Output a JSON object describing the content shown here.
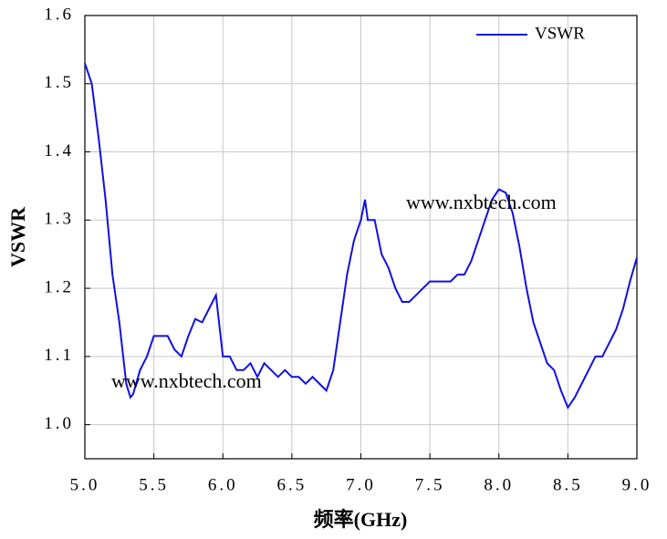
{
  "chart_data": {
    "type": "line",
    "xlabel": "频率(GHz)",
    "ylabel": "VSWR",
    "x": [
      5.0,
      5.05,
      5.1,
      5.15,
      5.2,
      5.25,
      5.3,
      5.33,
      5.35,
      5.4,
      5.45,
      5.5,
      5.55,
      5.6,
      5.65,
      5.7,
      5.75,
      5.8,
      5.85,
      5.9,
      5.95,
      6.0,
      6.05,
      6.1,
      6.15,
      6.2,
      6.25,
      6.3,
      6.35,
      6.4,
      6.45,
      6.5,
      6.55,
      6.6,
      6.65,
      6.7,
      6.75,
      6.8,
      6.85,
      6.9,
      6.95,
      7.0,
      7.03,
      7.05,
      7.1,
      7.15,
      7.2,
      7.25,
      7.3,
      7.35,
      7.4,
      7.45,
      7.5,
      7.55,
      7.6,
      7.65,
      7.7,
      7.75,
      7.8,
      7.85,
      7.9,
      7.95,
      8.0,
      8.05,
      8.1,
      8.15,
      8.2,
      8.25,
      8.3,
      8.35,
      8.4,
      8.45,
      8.5,
      8.55,
      8.6,
      8.65,
      8.7,
      8.75,
      8.8,
      8.85,
      8.9,
      8.95,
      9.0
    ],
    "series": [
      {
        "name": "VSWR",
        "color": "#1010e0",
        "values": [
          1.53,
          1.5,
          1.42,
          1.33,
          1.22,
          1.15,
          1.06,
          1.04,
          1.045,
          1.08,
          1.1,
          1.13,
          1.13,
          1.13,
          1.11,
          1.1,
          1.13,
          1.155,
          1.15,
          1.17,
          1.19,
          1.1,
          1.1,
          1.08,
          1.08,
          1.09,
          1.07,
          1.09,
          1.08,
          1.07,
          1.08,
          1.07,
          1.07,
          1.06,
          1.07,
          1.06,
          1.05,
          1.08,
          1.15,
          1.22,
          1.27,
          1.3,
          1.33,
          1.3,
          1.3,
          1.25,
          1.23,
          1.2,
          1.18,
          1.18,
          1.19,
          1.2,
          1.21,
          1.21,
          1.21,
          1.21,
          1.22,
          1.22,
          1.24,
          1.27,
          1.3,
          1.33,
          1.345,
          1.34,
          1.31,
          1.26,
          1.2,
          1.15,
          1.12,
          1.09,
          1.08,
          1.05,
          1.025,
          1.04,
          1.06,
          1.08,
          1.1,
          1.1,
          1.12,
          1.14,
          1.17,
          1.21,
          1.245
        ]
      }
    ],
    "xlim": [
      5,
      9
    ],
    "xticks": [
      {
        "value": 5,
        "label": "5.0"
      },
      5.5,
      {
        "value": 6,
        "label": "6.0"
      },
      6.5,
      {
        "value": 7,
        "label": "7.0"
      },
      7.5,
      {
        "value": 8,
        "label": "8.0"
      },
      8.5,
      {
        "value": 9,
        "label": "9.0"
      }
    ],
    "ylim": [
      0.95,
      1.6
    ],
    "yticks": [
      {
        "value": 1,
        "label": "1.0"
      },
      1.1,
      1.2,
      1.3,
      1.4,
      1.5,
      1.6
    ],
    "grid": true,
    "legend": "upper right",
    "annotations": [
      "www.nxbtech.com",
      "www.nxbtech.com"
    ]
  }
}
